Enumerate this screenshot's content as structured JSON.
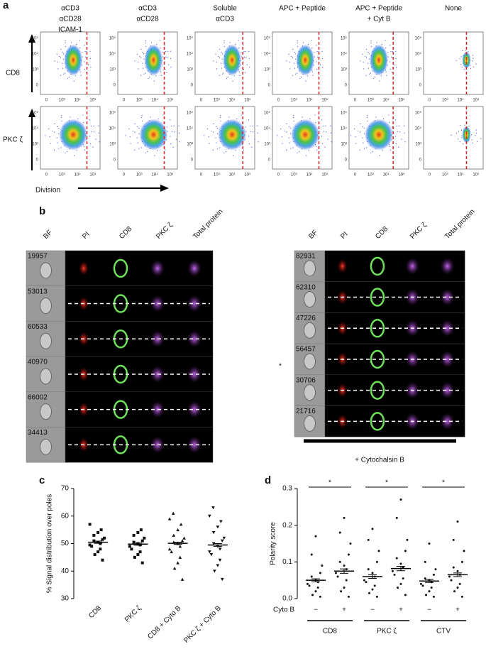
{
  "panel_a": {
    "label": "a",
    "columns": [
      [
        "αCD3",
        "αCD28",
        "ICAM-1"
      ],
      [
        "αCD3",
        "αCD28"
      ],
      [
        "Soluble",
        "αCD3"
      ],
      [
        "APC + Peptide"
      ],
      [
        "APC + Peptide",
        "+ Cyt B"
      ],
      [
        "None"
      ]
    ],
    "rows": [
      "CD8",
      "PKC ζ"
    ],
    "x_axis_label": "Division",
    "yticks": [
      "10⁵",
      "10⁴",
      "10³",
      "0"
    ],
    "xticks": [
      "0",
      "10³",
      "10⁴",
      "10⁵"
    ]
  },
  "panel_b": {
    "label": "b",
    "headers": [
      "BF",
      "PI",
      "CD8",
      "PKC ζ",
      "Total protein"
    ],
    "left_ids": [
      "19957",
      "53013",
      "60533",
      "40970",
      "66002",
      "34413"
    ],
    "right_ids": [
      "82931",
      "62310",
      "47226",
      "56457",
      "30706",
      "21716"
    ],
    "marker": "*",
    "treatment": "+ Cytochalsin B"
  },
  "chart_data": [
    {
      "type": "dot",
      "label": "c",
      "ylabel": "% Signal distribution over poles",
      "categories": [
        "CD8",
        "PKC ζ",
        "CD8 + Cyto B",
        "PKC ζ + Cyto B"
      ],
      "markers": [
        "square",
        "square",
        "triangle-up",
        "triangle-down"
      ],
      "ylim": [
        30,
        70
      ],
      "yticks": [
        30,
        40,
        50,
        60,
        70
      ],
      "groups": [
        {
          "values": [
            44,
            46,
            47,
            48,
            49,
            49.5,
            50,
            50.5,
            51,
            51.5,
            52,
            53,
            54,
            55,
            57
          ],
          "mean": 50.5,
          "sem": 0.4
        },
        {
          "values": [
            43,
            45,
            46,
            47,
            48,
            49,
            49.5,
            50,
            50.5,
            51,
            52,
            53,
            54,
            55
          ],
          "mean": 49.8,
          "sem": 0.4
        },
        {
          "values": [
            37,
            41,
            43,
            45,
            47,
            48,
            49,
            50,
            50.5,
            51,
            52,
            53,
            55,
            57,
            59,
            61
          ],
          "mean": 50.1,
          "sem": 0.4
        },
        {
          "values": [
            37,
            40,
            42,
            44,
            46,
            47,
            48,
            49,
            50,
            51,
            52,
            54,
            56,
            58,
            60,
            63
          ],
          "mean": 49.5,
          "sem": 0.5
        }
      ]
    },
    {
      "type": "dot",
      "label": "d",
      "ylabel": "Polarity score",
      "ylim": [
        0,
        0.3
      ],
      "yticks": [
        {
          "value": 0,
          "label": "0.0"
        },
        0.1,
        0.2,
        0.3
      ],
      "condition_label": "Cyto B",
      "conditions": [
        "−",
        "+",
        "−",
        "+",
        "−",
        "+"
      ],
      "group_labels": [
        "CD8",
        "PKC ζ",
        "CTV"
      ],
      "significance": [
        "*",
        "*",
        "*"
      ],
      "groups": [
        {
          "values": [
            0.005,
            0.01,
            0.02,
            0.03,
            0.035,
            0.04,
            0.045,
            0.05,
            0.06,
            0.07,
            0.09,
            0.12,
            0.17
          ],
          "mean": 0.05,
          "sem": 0.004
        },
        {
          "values": [
            0.005,
            0.02,
            0.03,
            0.05,
            0.06,
            0.07,
            0.08,
            0.09,
            0.1,
            0.12,
            0.15,
            0.18,
            0.22
          ],
          "mean": 0.075,
          "sem": 0.006
        },
        {
          "values": [
            0.005,
            0.015,
            0.025,
            0.035,
            0.045,
            0.05,
            0.06,
            0.07,
            0.08,
            0.1,
            0.13,
            0.16,
            0.19
          ],
          "mean": 0.06,
          "sem": 0.005
        },
        {
          "values": [
            0.01,
            0.03,
            0.04,
            0.055,
            0.065,
            0.075,
            0.085,
            0.095,
            0.11,
            0.13,
            0.16,
            0.22,
            0.27
          ],
          "mean": 0.082,
          "sem": 0.006
        },
        {
          "values": [
            0.005,
            0.01,
            0.02,
            0.03,
            0.035,
            0.04,
            0.045,
            0.05,
            0.055,
            0.065,
            0.08,
            0.1,
            0.15
          ],
          "mean": 0.048,
          "sem": 0.004
        },
        {
          "values": [
            0.005,
            0.02,
            0.03,
            0.04,
            0.05,
            0.06,
            0.065,
            0.075,
            0.085,
            0.1,
            0.13,
            0.16,
            0.21
          ],
          "mean": 0.065,
          "sem": 0.005
        }
      ]
    }
  ]
}
